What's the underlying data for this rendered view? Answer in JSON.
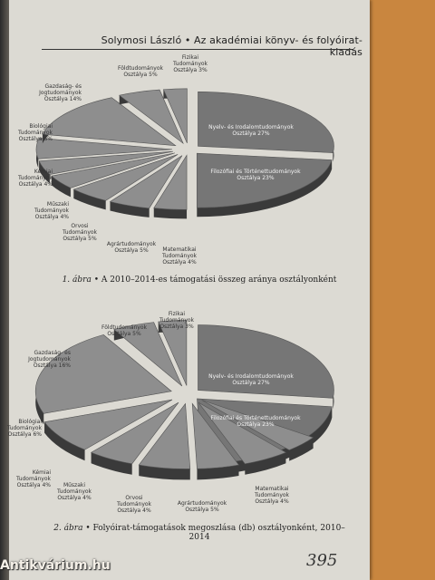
{
  "header": {
    "text": "Solymosi László • Az akadémiai könyv- és folyóirat-kiadás"
  },
  "figure1": {
    "caption_prefix": "1. ábra",
    "caption_text": " • A 2010–2014-es támogatási összeg aránya osztályonként",
    "labels": {
      "fizikai": "Fizikai\nTudományok\nOsztálya 3%",
      "fold": "Földtudományok\nOsztálya 5%",
      "gazd": "Gazdaság- és\nJogtudományok\nOsztálya 14%",
      "biol": "Biológiai\nTudományok\nOsztálya 6%",
      "kemiai": "Kémiai\nTudományok\nOsztálya 4%",
      "muszaki": "Műszaki\nTudományok\nOsztálya 4%",
      "orvosi": "Orvosi\nTudományok\nOsztálya 5%",
      "agrar": "Agrártudományok\nOsztálya 5%",
      "matek": "Matematikai\nTudományok\nOsztálya 4%",
      "nyelv": "Nyelv- és Irodalomtudományok\nOsztálya 27%",
      "filo": "Filozófiai és Történettudományok\nOsztálya 23%"
    }
  },
  "figure2": {
    "caption_prefix": "2. ábra",
    "caption_text": " • Folyóirat-támogatások megoszlása (db) osztályonként, 2010–2014",
    "labels": {
      "fizikai": "Fizikai\nTudományok\nOsztálya 3%",
      "fold": "Földtudományok\nOsztálya 5%",
      "gazd": "Gazdaság- és\nJogtudományok\nOsztálya 16%",
      "biol": "Biológiai\nTudományok\nOsztálya 6%",
      "kemiai": "Kémiai\nTudományok\nOsztálya 4%",
      "muszaki": "Műszaki\nTudományok\nOsztálya 4%",
      "orvosi": "Orvosi\nTudományok\nOsztálya 4%",
      "agrar": "Agrártudományok\nOsztálya 5%",
      "matek": "Matematikai\nTudományok\nOsztálya 4%",
      "nyelv": "Nyelv- és Irodalomtudományok\nOsztálya 27%",
      "filo": "Filozófiai és Történettudományok\nOsztálya 23%"
    }
  },
  "page_number": "395",
  "watermark": "Antikvárium.hu",
  "colors": {
    "page": "#dcdad3",
    "slice_top": "#8e8e8e",
    "slice_side": "#3a3a3a",
    "big_slice_top": "#767676",
    "background": "#c9863f"
  }
}
